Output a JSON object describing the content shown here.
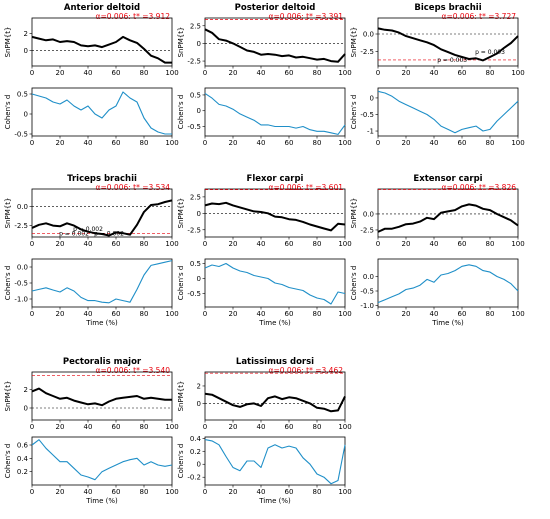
{
  "figure": {
    "xlabel": "Time (%)",
    "spm_ylabel": "SnPM{t}",
    "cohen_ylabel": "Cohen's d",
    "x_ticks": [
      0,
      20,
      40,
      60,
      80,
      100
    ],
    "colors": {
      "spm": "#000000",
      "threshold": "#e8000b",
      "cohen": "#1f8fc8"
    }
  },
  "chart_data": [
    {
      "type": "line",
      "title": "Anterior deltoid",
      "threshold_label": "α=0.006: t* =3.912",
      "spm": {
        "ylabel": "SnPM{t}",
        "ylim": [
          -1.8,
          3.8
        ],
        "yticks": [
          0,
          2
        ],
        "x": [
          0,
          5,
          10,
          15,
          20,
          25,
          30,
          35,
          40,
          45,
          50,
          55,
          60,
          65,
          70,
          75,
          80,
          85,
          90,
          95,
          100
        ],
        "values": [
          1.6,
          1.4,
          1.2,
          1.3,
          1.0,
          1.1,
          1.0,
          0.6,
          0.5,
          0.6,
          0.4,
          0.7,
          1.0,
          1.6,
          1.2,
          0.9,
          0.2,
          -0.6,
          -0.9,
          -1.4,
          -1.4
        ]
      },
      "cohen": {
        "ylabel": "Cohen's d",
        "ylim": [
          -0.55,
          0.65
        ],
        "yticks": [
          -0.5,
          0,
          0.5
        ],
        "xlabel": "",
        "x": [
          0,
          5,
          10,
          15,
          20,
          25,
          30,
          35,
          40,
          45,
          50,
          55,
          60,
          65,
          70,
          75,
          80,
          85,
          90,
          95,
          100
        ],
        "values": [
          0.5,
          0.45,
          0.4,
          0.3,
          0.25,
          0.35,
          0.2,
          0.1,
          0.2,
          0.0,
          -0.1,
          0.1,
          0.2,
          0.55,
          0.4,
          0.3,
          -0.1,
          -0.35,
          -0.45,
          -0.5,
          -0.5
        ]
      },
      "annotations": []
    },
    {
      "type": "line",
      "title": "Posterior deltoid",
      "threshold_label": "α=0.006: t* =3.391",
      "spm": {
        "ylabel": "SnPM{t}",
        "ylim": [
          -3.2,
          3.6
        ],
        "yticks": [
          -2.5,
          0,
          2.5
        ],
        "x": [
          0,
          5,
          10,
          15,
          20,
          25,
          30,
          35,
          40,
          45,
          50,
          55,
          60,
          65,
          70,
          75,
          80,
          85,
          90,
          95,
          100
        ],
        "values": [
          2.0,
          1.5,
          0.6,
          0.4,
          0.0,
          -0.5,
          -1.0,
          -1.2,
          -1.6,
          -1.5,
          -1.6,
          -1.8,
          -1.7,
          -2.0,
          -1.9,
          -2.1,
          -2.3,
          -2.2,
          -2.5,
          -2.6,
          -1.5
        ]
      },
      "cohen": {
        "ylabel": "Cohen's d",
        "ylim": [
          -0.8,
          0.72
        ],
        "yticks": [
          -0.5,
          0,
          0.5
        ],
        "xlabel": "",
        "x": [
          0,
          5,
          10,
          15,
          20,
          25,
          30,
          35,
          40,
          45,
          50,
          55,
          60,
          65,
          70,
          75,
          80,
          85,
          90,
          95,
          100
        ],
        "values": [
          0.55,
          0.4,
          0.2,
          0.15,
          0.05,
          -0.1,
          -0.2,
          -0.3,
          -0.45,
          -0.45,
          -0.5,
          -0.5,
          -0.5,
          -0.55,
          -0.5,
          -0.6,
          -0.65,
          -0.65,
          -0.7,
          -0.75,
          -0.45
        ]
      },
      "annotations": []
    },
    {
      "type": "line",
      "title": "Biceps brachii",
      "threshold_label": "α=0.006: t* =3.727",
      "spm": {
        "ylabel": "SnPM{t}",
        "ylim": [
          -4.6,
          2.3
        ],
        "yticks": [
          -2.5,
          0
        ],
        "yticklabels": [
          "-2.5",
          "0.0"
        ],
        "x": [
          0,
          5,
          10,
          15,
          20,
          25,
          30,
          35,
          40,
          45,
          50,
          55,
          60,
          65,
          70,
          75,
          80,
          85,
          90,
          95,
          100
        ],
        "values": [
          0.8,
          0.6,
          0.5,
          0.2,
          -0.3,
          -0.6,
          -0.9,
          -1.2,
          -1.6,
          -2.2,
          -2.6,
          -3.0,
          -3.3,
          -3.6,
          -3.5,
          -3.8,
          -3.3,
          -2.8,
          -2.0,
          -1.3,
          -0.3
        ]
      },
      "cohen": {
        "ylabel": "Cohen's d",
        "ylim": [
          -1.15,
          0.3
        ],
        "yticks": [
          -1,
          -0.5,
          0
        ],
        "xlabel": "",
        "x": [
          0,
          5,
          10,
          15,
          20,
          25,
          30,
          35,
          40,
          45,
          50,
          55,
          60,
          65,
          70,
          75,
          80,
          85,
          90,
          95,
          100
        ],
        "values": [
          0.2,
          0.15,
          0.05,
          -0.1,
          -0.2,
          -0.3,
          -0.4,
          -0.5,
          -0.65,
          -0.85,
          -0.95,
          -1.05,
          -0.95,
          -0.9,
          -0.85,
          -1.0,
          -0.95,
          -0.7,
          -0.5,
          -0.3,
          -0.1
        ]
      },
      "annotations": [
        {
          "text": "p = 0.003",
          "x": 53,
          "y": -4.0
        },
        {
          "text": "p = 0.003",
          "x": 80,
          "y": -2.9
        }
      ]
    },
    {
      "type": "line",
      "title": "Triceps brachii",
      "threshold_label": "α=0.006: t* =3.534",
      "spm": {
        "ylabel": "SnPM{t}",
        "ylim": [
          -4.0,
          2.3
        ],
        "yticks": [
          -2.5,
          0
        ],
        "yticklabels": [
          "-2.5",
          "0.0"
        ],
        "x": [
          0,
          5,
          10,
          15,
          20,
          25,
          30,
          35,
          40,
          45,
          50,
          55,
          60,
          65,
          70,
          75,
          80,
          85,
          90,
          95,
          100
        ],
        "values": [
          -2.8,
          -2.4,
          -2.2,
          -2.5,
          -2.6,
          -2.2,
          -2.5,
          -3.0,
          -3.3,
          -3.5,
          -3.6,
          -3.8,
          -3.4,
          -3.5,
          -3.7,
          -2.4,
          -0.7,
          0.2,
          0.3,
          0.6,
          0.8
        ]
      },
      "cohen": {
        "ylabel": "Cohen's d",
        "ylim": [
          -1.25,
          0.25
        ],
        "yticks": [
          -1,
          -0.5,
          0
        ],
        "yticklabels": [
          "-1.0",
          "-0.5",
          "0.0"
        ],
        "xlabel": "Time (%)",
        "x": [
          0,
          5,
          10,
          15,
          20,
          25,
          30,
          35,
          40,
          45,
          50,
          55,
          60,
          65,
          70,
          75,
          80,
          85,
          90,
          95,
          100
        ],
        "values": [
          -0.75,
          -0.7,
          -0.65,
          -0.72,
          -0.78,
          -0.65,
          -0.75,
          -0.95,
          -1.05,
          -1.05,
          -1.1,
          -1.12,
          -1.0,
          -1.05,
          -1.1,
          -0.7,
          -0.25,
          0.05,
          0.1,
          0.15,
          0.2
        ]
      },
      "annotations": [
        {
          "text": "p = 0.002",
          "x": 40,
          "y": -3.2
        },
        {
          "text": "p = 0.002",
          "x": 30,
          "y": -3.8
        },
        {
          "text": "p = 0.002",
          "x": 55,
          "y": -3.8
        }
      ]
    },
    {
      "type": "line",
      "title": "Flexor carpi",
      "threshold_label": "α=0.006: t* =3.601",
      "spm": {
        "ylabel": "SnPM{t}",
        "ylim": [
          -3.6,
          3.7
        ],
        "yticks": [
          -2.5,
          0,
          2.5
        ],
        "x": [
          0,
          5,
          10,
          15,
          20,
          25,
          30,
          35,
          40,
          45,
          50,
          55,
          60,
          65,
          70,
          75,
          80,
          85,
          90,
          95,
          100
        ],
        "values": [
          1.2,
          1.5,
          1.4,
          1.6,
          1.2,
          0.9,
          0.6,
          0.3,
          0.2,
          0.0,
          -0.5,
          -0.6,
          -0.9,
          -1.0,
          -1.3,
          -1.7,
          -2.0,
          -2.3,
          -2.6,
          -1.6,
          -1.7
        ]
      },
      "cohen": {
        "ylabel": "Cohen's d",
        "ylim": [
          -0.95,
          0.65
        ],
        "yticks": [
          -0.5,
          0,
          0.5
        ],
        "xlabel": "Time (%)",
        "x": [
          0,
          5,
          10,
          15,
          20,
          25,
          30,
          35,
          40,
          45,
          50,
          55,
          60,
          65,
          70,
          75,
          80,
          85,
          90,
          95,
          100
        ],
        "values": [
          0.35,
          0.45,
          0.4,
          0.5,
          0.35,
          0.25,
          0.2,
          0.1,
          0.05,
          0.0,
          -0.15,
          -0.2,
          -0.3,
          -0.35,
          -0.4,
          -0.55,
          -0.65,
          -0.7,
          -0.85,
          -0.45,
          -0.5
        ]
      },
      "annotations": []
    },
    {
      "type": "line",
      "title": "Extensor carpi",
      "threshold_label": "α=0.006: t* =3.826",
      "spm": {
        "ylabel": "SnPM{t}",
        "ylim": [
          -3.6,
          3.9
        ],
        "yticks": [
          -2.5,
          0
        ],
        "yticklabels": [
          "-2.5",
          "0.0"
        ],
        "x": [
          0,
          5,
          10,
          15,
          20,
          25,
          30,
          35,
          40,
          45,
          50,
          55,
          60,
          65,
          70,
          75,
          80,
          85,
          90,
          95,
          100
        ],
        "values": [
          -2.8,
          -2.3,
          -2.3,
          -2.0,
          -1.6,
          -1.5,
          -1.2,
          -0.6,
          -0.8,
          0.2,
          0.4,
          0.6,
          1.2,
          1.5,
          1.3,
          0.8,
          0.6,
          0.0,
          -0.5,
          -1.0,
          -1.8
        ]
      },
      "cohen": {
        "ylabel": "Cohen's d",
        "ylim": [
          -1.05,
          0.6
        ],
        "yticks": [
          -1,
          -0.5,
          0
        ],
        "yticklabels": [
          "-1.0",
          "-0.5",
          "0.0"
        ],
        "xlabel": "Time (%)",
        "x": [
          0,
          5,
          10,
          15,
          20,
          25,
          30,
          35,
          40,
          45,
          50,
          55,
          60,
          65,
          70,
          75,
          80,
          85,
          90,
          95,
          100
        ],
        "values": [
          -0.9,
          -0.8,
          -0.7,
          -0.6,
          -0.45,
          -0.4,
          -0.3,
          -0.1,
          -0.2,
          0.05,
          0.1,
          0.2,
          0.35,
          0.4,
          0.35,
          0.2,
          0.15,
          0.0,
          -0.1,
          -0.25,
          -0.5
        ]
      },
      "annotations": []
    },
    {
      "type": "line",
      "title": "Pectoralis major",
      "threshold_label": "α=0.006: t* =3.540",
      "spm": {
        "ylabel": "SnPM{t}",
        "ylim": [
          -1.3,
          3.9
        ],
        "yticks": [
          0,
          2
        ],
        "x": [
          0,
          5,
          10,
          15,
          20,
          25,
          30,
          35,
          40,
          45,
          50,
          55,
          60,
          65,
          70,
          75,
          80,
          85,
          90,
          95,
          100
        ],
        "values": [
          1.8,
          2.1,
          1.6,
          1.3,
          1.0,
          1.1,
          0.8,
          0.6,
          0.4,
          0.5,
          0.3,
          0.7,
          1.0,
          1.1,
          1.2,
          1.3,
          1.0,
          1.1,
          1.0,
          0.9,
          0.9
        ]
      },
      "cohen": {
        "ylabel": "Cohen's d",
        "ylim": [
          0.0,
          0.72
        ],
        "yticks": [
          0.2,
          0.4,
          0.6
        ],
        "xlabel": "Time (%)",
        "x": [
          0,
          5,
          10,
          15,
          20,
          25,
          30,
          35,
          40,
          45,
          50,
          55,
          60,
          65,
          70,
          75,
          80,
          85,
          90,
          95,
          100
        ],
        "values": [
          0.6,
          0.68,
          0.55,
          0.45,
          0.35,
          0.35,
          0.25,
          0.15,
          0.12,
          0.08,
          0.2,
          0.25,
          0.3,
          0.35,
          0.38,
          0.4,
          0.3,
          0.35,
          0.3,
          0.28,
          0.3
        ]
      },
      "annotations": []
    },
    {
      "type": "line",
      "title": "Latissimus dorsi",
      "threshold_label": "α=0.006: t* =3.462",
      "spm": {
        "ylabel": "SnPM{t}",
        "ylim": [
          -1.9,
          3.6
        ],
        "yticks": [
          0,
          2
        ],
        "x": [
          0,
          5,
          10,
          15,
          20,
          25,
          30,
          35,
          40,
          45,
          50,
          55,
          60,
          65,
          70,
          75,
          80,
          85,
          90,
          95,
          100
        ],
        "values": [
          1.1,
          1.0,
          0.6,
          0.2,
          -0.2,
          -0.4,
          -0.1,
          0.0,
          -0.3,
          0.6,
          0.8,
          0.5,
          0.7,
          0.6,
          0.3,
          0.0,
          -0.5,
          -0.6,
          -0.9,
          -0.8,
          0.8
        ]
      },
      "cohen": {
        "ylabel": "Cohen's d",
        "ylim": [
          -0.32,
          0.42
        ],
        "yticks": [
          -0.2,
          0,
          0.2,
          0.4
        ],
        "xlabel": "Time (%)",
        "x": [
          0,
          5,
          10,
          15,
          20,
          25,
          30,
          35,
          40,
          45,
          50,
          55,
          60,
          65,
          70,
          75,
          80,
          85,
          90,
          95,
          100
        ],
        "values": [
          0.38,
          0.36,
          0.3,
          0.12,
          -0.05,
          -0.1,
          0.05,
          0.05,
          -0.05,
          0.25,
          0.3,
          0.25,
          0.28,
          0.25,
          0.1,
          0.0,
          -0.15,
          -0.2,
          -0.3,
          -0.25,
          0.3
        ]
      },
      "annotations": []
    }
  ]
}
